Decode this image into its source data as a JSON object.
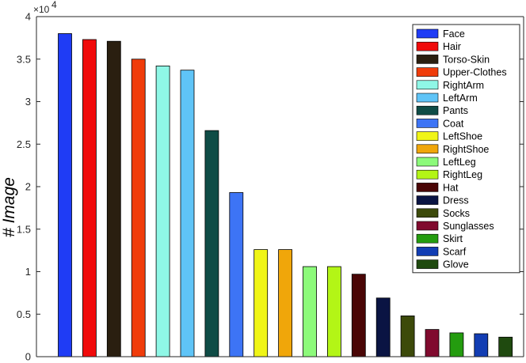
{
  "chart_data": {
    "type": "bar",
    "title": "",
    "xlabel": "",
    "ylabel": "# Image",
    "y_exponent_label": "×10",
    "y_exponent": "4",
    "ylim": [
      0,
      4
    ],
    "yticks": [
      0,
      0.5,
      1,
      1.5,
      2,
      2.5,
      3,
      3.5,
      4
    ],
    "ytick_labels": [
      "0",
      "0.5",
      "1",
      "1.5",
      "2",
      "2.5",
      "3",
      "3.5",
      "4"
    ],
    "grid": false,
    "legend_position": "top-right",
    "categories": [
      "Face",
      "Hair",
      "Torso-Skin",
      "Upper-Clothes",
      "RightArm",
      "LeftArm",
      "Pants",
      "Coat",
      "LeftShoe",
      "RightShoe",
      "LeftLeg",
      "RightLeg",
      "Hat",
      "Dress",
      "Socks",
      "Sunglasses",
      "Skirt",
      "Scarf",
      "Glove"
    ],
    "values": [
      3.8,
      3.73,
      3.71,
      3.5,
      3.42,
      3.37,
      2.66,
      1.93,
      1.26,
      1.26,
      1.06,
      1.06,
      0.97,
      0.69,
      0.48,
      0.32,
      0.28,
      0.27,
      0.23
    ],
    "colors": [
      "#1f3cf5",
      "#f00a0a",
      "#2a1f10",
      "#f03c0a",
      "#8ff7e6",
      "#5fc4f7",
      "#0f4c46",
      "#3d74f5",
      "#f0f516",
      "#f0a60a",
      "#8cfa7a",
      "#b3f516",
      "#4a0606",
      "#0a1443",
      "#3c4a0a",
      "#800a2e",
      "#249c0f",
      "#123db3",
      "#1f4a0f"
    ]
  }
}
